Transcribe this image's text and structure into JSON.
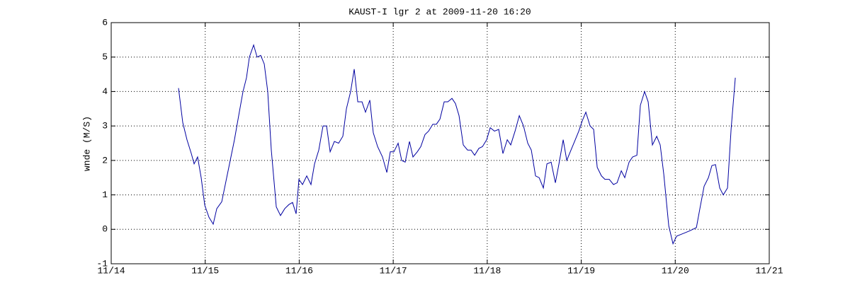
{
  "chart_data": {
    "type": "line",
    "title": "KAUST-I lgr 2 at 2009-11-20 16:20",
    "y_label": "wnde (M/S)",
    "xlim": [
      0,
      7
    ],
    "xticks": [
      {
        "value": 0,
        "label": "11/14"
      },
      {
        "value": 1,
        "label": "11/15"
      },
      {
        "value": 2,
        "label": "11/16"
      },
      {
        "value": 3,
        "label": "11/17"
      },
      {
        "value": 4,
        "label": "11/18"
      },
      {
        "value": 5,
        "label": "11/19"
      },
      {
        "value": 6,
        "label": "11/20"
      },
      {
        "value": 7,
        "label": "11/21"
      }
    ],
    "ylim": [
      -1,
      6
    ],
    "yticks": [
      -1,
      0,
      1,
      2,
      3,
      4,
      5,
      6
    ],
    "grid": true,
    "series": [
      {
        "color": "#0000a0",
        "x": [
          0.716,
          0.761,
          0.806,
          0.852,
          0.882,
          0.919,
          0.957,
          0.995,
          1.04,
          1.085,
          1.123,
          1.176,
          1.221,
          1.266,
          1.311,
          1.356,
          1.402,
          1.439,
          1.47,
          1.515,
          1.552,
          1.59,
          1.628,
          1.665,
          1.703,
          1.756,
          1.801,
          1.846,
          1.891,
          1.929,
          1.967,
          1.997,
          2.035,
          2.08,
          2.125,
          2.163,
          2.208,
          2.253,
          2.291,
          2.329,
          2.374,
          2.419,
          2.464,
          2.502,
          2.547,
          2.585,
          2.623,
          2.668,
          2.705,
          2.751,
          2.788,
          2.834,
          2.886,
          2.932,
          2.969,
          3.007,
          3.052,
          3.09,
          3.127,
          3.173,
          3.21,
          3.256,
          3.293,
          3.338,
          3.376,
          3.421,
          3.459,
          3.497,
          3.542,
          3.58,
          3.625,
          3.662,
          3.7,
          3.745,
          3.791,
          3.828,
          3.866,
          3.911,
          3.949,
          3.994,
          4.032,
          4.077,
          4.122,
          4.167,
          4.213,
          4.25,
          4.296,
          4.341,
          4.386,
          4.431,
          4.469,
          4.514,
          4.552,
          4.597,
          4.635,
          4.68,
          4.725,
          4.763,
          4.808,
          4.846,
          4.891,
          4.929,
          4.974,
          5.011,
          5.049,
          5.094,
          5.132,
          5.17,
          5.215,
          5.252,
          5.298,
          5.343,
          5.381,
          5.426,
          5.463,
          5.509,
          5.546,
          5.592,
          5.629,
          5.674,
          5.712,
          5.757,
          5.803,
          5.84,
          5.878,
          5.931,
          5.976,
          6.014,
          6.059,
          6.104,
          6.149,
          6.187,
          6.225,
          6.262,
          6.307,
          6.353,
          6.39,
          6.428,
          6.473,
          6.511,
          6.556,
          6.594,
          6.639
        ],
        "values": [
          4.1,
          3.1,
          2.6,
          2.2,
          1.9,
          2.1,
          1.5,
          0.7,
          0.35,
          0.15,
          0.6,
          0.8,
          1.4,
          2.0,
          2.6,
          3.3,
          4.0,
          4.4,
          5.0,
          5.35,
          5.0,
          5.05,
          4.8,
          4.0,
          2.3,
          0.65,
          0.4,
          0.6,
          0.72,
          0.78,
          0.45,
          1.45,
          1.3,
          1.55,
          1.3,
          1.9,
          2.3,
          3.0,
          3.0,
          2.25,
          2.55,
          2.5,
          2.7,
          3.5,
          4.0,
          4.65,
          3.7,
          3.7,
          3.4,
          3.75,
          2.8,
          2.4,
          2.1,
          1.65,
          2.25,
          2.25,
          2.5,
          2.0,
          1.95,
          2.55,
          2.1,
          2.25,
          2.4,
          2.75,
          2.85,
          3.05,
          3.05,
          3.2,
          3.7,
          3.7,
          3.8,
          3.65,
          3.3,
          2.45,
          2.3,
          2.3,
          2.15,
          2.35,
          2.4,
          2.6,
          2.95,
          2.85,
          2.9,
          2.2,
          2.6,
          2.45,
          2.85,
          3.3,
          3.0,
          2.5,
          2.3,
          1.55,
          1.5,
          1.2,
          1.9,
          1.95,
          1.35,
          1.9,
          2.6,
          2.0,
          2.3,
          2.55,
          2.85,
          3.15,
          3.4,
          3.0,
          2.9,
          1.8,
          1.55,
          1.45,
          1.45,
          1.3,
          1.35,
          1.7,
          1.5,
          1.95,
          2.1,
          2.15,
          3.6,
          4.0,
          3.7,
          2.45,
          2.7,
          2.45,
          1.6,
          0.1,
          -0.42,
          -0.2,
          -0.15,
          -0.1,
          -0.05,
          0.0,
          0.05,
          0.6,
          1.25,
          1.5,
          1.85,
          1.88,
          1.2,
          1.0,
          1.2,
          2.9,
          4.4
        ]
      }
    ]
  }
}
